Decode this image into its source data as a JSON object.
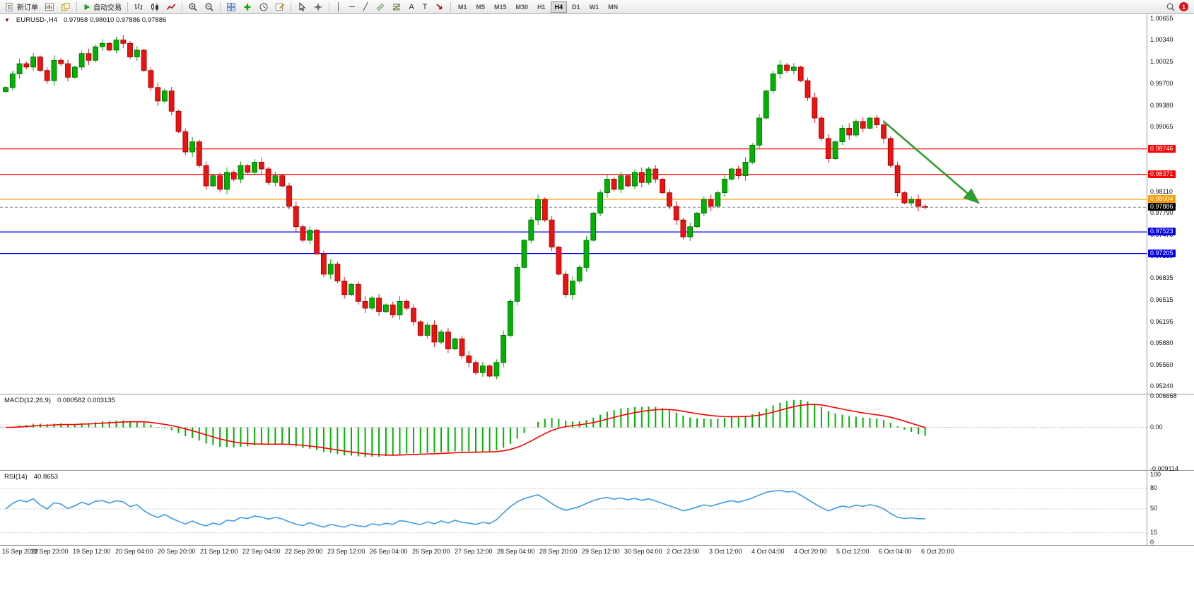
{
  "toolbar": {
    "new_order": {
      "label": "新订单"
    },
    "auto_trading": {
      "label": "自动交易"
    },
    "timeframes": {
      "items": [
        "M1",
        "M5",
        "M15",
        "M30",
        "H1",
        "H4",
        "D1",
        "W1",
        "MN"
      ],
      "active": "H4"
    },
    "notification": {
      "count": "1"
    }
  },
  "icons": {
    "collapse": "▼",
    "vertical_line": "│",
    "horizontal_line": "─",
    "trendline": "╱",
    "text": "A",
    "text_label": "T"
  },
  "price_scale": {
    "labels": [
      "1.00655",
      "1.00340",
      "1.00025",
      "0.99700",
      "0.99380",
      "0.99065",
      "0.98110",
      "0.97790",
      "0.97470",
      "0.97155",
      "0.96835",
      "0.96515",
      "0.96195",
      "0.95880",
      "0.95560",
      "0.95240"
    ]
  },
  "time_axis": {
    "labels": [
      "16 Sep 2022",
      "18 Sep 23:00",
      "19 Sep 12:00",
      "20 Sep 04:00",
      "20 Sep 20:00",
      "21 Sep 12:00",
      "22 Sep 04:00",
      "22 Sep 20:00",
      "23 Sep 12:00",
      "26 Sep 04:00",
      "26 Sep 20:00",
      "27 Sep 12:00",
      "28 Sep 04:00",
      "28 Sep 20:00",
      "29 Sep 12:00",
      "30 Sep 04:00",
      "2 Oct 23:00",
      "3 Oct 12:00",
      "4 Oct 04:00",
      "4 Oct 20:00",
      "5 Oct 12:00",
      "6 Oct 04:00",
      "6 Oct 20:00"
    ]
  },
  "chart_data": {
    "type": "candlestick",
    "header": {
      "symbol_text": "EURUSD-,H4",
      "ohlc_text": "0.97958 0.98010 0.97886 0.97886"
    },
    "y_range": [
      0.9514,
      1.0073
    ],
    "up_color": "#00b300",
    "up_border": "#006600",
    "down_color": "#ee1111",
    "down_border": "#990000",
    "closes": [
      0.9965,
      0.9985,
      1.0,
      0.9995,
      1.001,
      0.999,
      0.9975,
      1.0005,
      1.0,
      0.998,
      0.9995,
      1.0015,
      1.0005,
      1.0025,
      1.003,
      1.002,
      1.0035,
      1.003,
      1.001,
      1.002,
      0.999,
      0.9965,
      0.9945,
      0.996,
      0.993,
      0.99,
      0.987,
      0.9885,
      0.985,
      0.982,
      0.9835,
      0.9815,
      0.984,
      0.983,
      0.985,
      0.984,
      0.9855,
      0.9845,
      0.9825,
      0.9835,
      0.982,
      0.979,
      0.976,
      0.974,
      0.9755,
      0.972,
      0.969,
      0.9705,
      0.968,
      0.966,
      0.9675,
      0.965,
      0.964,
      0.9655,
      0.9635,
      0.9645,
      0.963,
      0.965,
      0.964,
      0.962,
      0.96,
      0.9615,
      0.959,
      0.9605,
      0.958,
      0.9595,
      0.957,
      0.956,
      0.9545,
      0.9555,
      0.954,
      0.956,
      0.96,
      0.965,
      0.97,
      0.974,
      0.977,
      0.98,
      0.977,
      0.973,
      0.969,
      0.966,
      0.968,
      0.97,
      0.974,
      0.978,
      0.981,
      0.983,
      0.9815,
      0.9835,
      0.982,
      0.984,
      0.9825,
      0.9845,
      0.983,
      0.981,
      0.979,
      0.977,
      0.9745,
      0.976,
      0.978,
      0.98,
      0.979,
      0.981,
      0.983,
      0.9845,
      0.9835,
      0.9855,
      0.988,
      0.992,
      0.996,
      0.9985,
      0.9998,
      0.999,
      0.9995,
      0.9975,
      0.995,
      0.992,
      0.989,
      0.986,
      0.9885,
      0.9905,
      0.9895,
      0.9915,
      0.9905,
      0.992,
      0.991,
      0.989,
      0.985,
      0.981,
      0.9795,
      0.98,
      0.979,
      0.97886
    ],
    "levels": [
      {
        "price": 0.98746,
        "label": "0.98746",
        "color": "#ff0000"
      },
      {
        "price": 0.98371,
        "label": "0.98371",
        "color": "#ff0000"
      },
      {
        "price": 0.98004,
        "label": "0.98004",
        "color": "#ff9900"
      },
      {
        "price": 0.97523,
        "label": "0.97523",
        "color": "#0000ee"
      },
      {
        "price": 0.97205,
        "label": "0.97205",
        "color": "#0000ee"
      }
    ],
    "current_price": {
      "value": 0.97886,
      "label": "0.97886"
    },
    "trend_arrow": {
      "from_index": 127,
      "from_price": 0.9915,
      "to_index": 140.5,
      "to_price": 0.9797,
      "color": "#2f9e2f"
    },
    "macd": {
      "label": "MACD(12,26,9)",
      "values_text": "0.000582 0.003135",
      "params": [
        12,
        26,
        9
      ],
      "scale_labels": [
        "0.006668",
        "0.00",
        "-0.009114"
      ],
      "y_range": [
        -0.0095,
        0.0072
      ],
      "hist_color": "#00b300",
      "signal_color": "#ff0000"
    },
    "rsi": {
      "label": "RSI(14)",
      "value_text": "40.8653",
      "period": 14,
      "levels": [
        80,
        50,
        15
      ],
      "scale_labels": [
        "100",
        "80",
        "50",
        "15",
        "0"
      ],
      "color": "#3d9be9"
    }
  }
}
